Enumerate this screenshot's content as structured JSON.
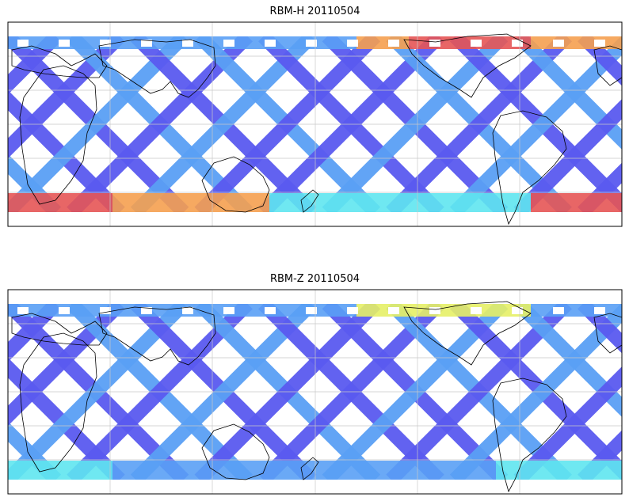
{
  "panels": [
    {
      "title": "RBM-H 20110504",
      "scheme": "hot"
    },
    {
      "title": "RBM-Z 20110504",
      "scheme": "cool"
    }
  ],
  "colors": {
    "low": "#5a5af0",
    "mid_low": "#5aa0f5",
    "mid": "#5fe6f0",
    "mid_high": "#e6f066",
    "high": "#f5a050",
    "max": "#e65555",
    "coast": "#000000",
    "grid": "#c8c8c8"
  }
}
